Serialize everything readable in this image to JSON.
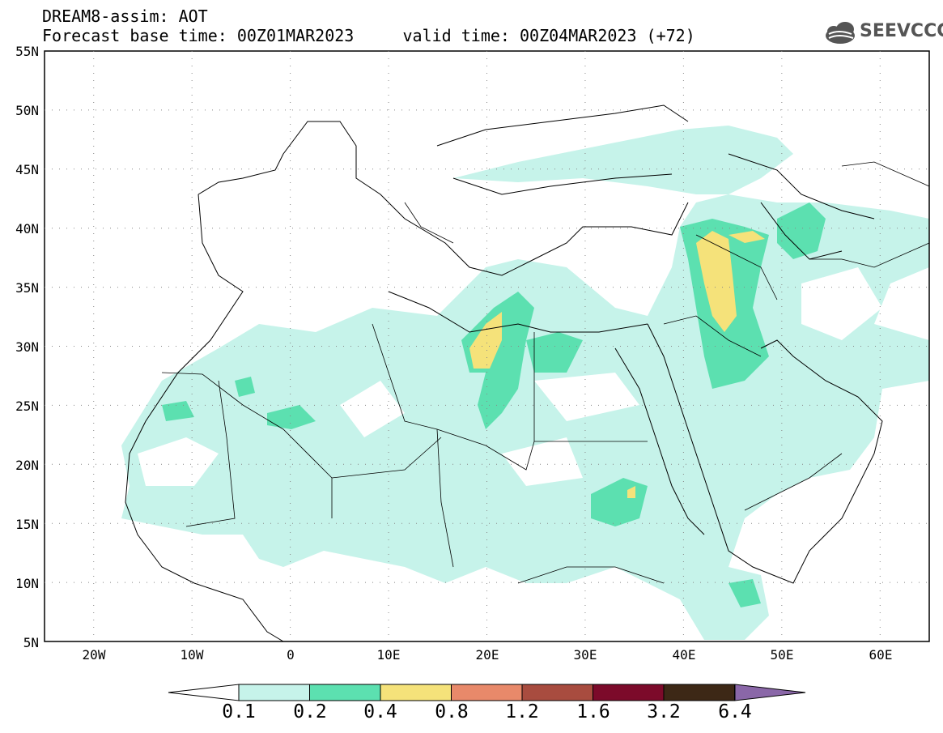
{
  "header": {
    "line1": "DREAM8-assim: AOT",
    "line2": "Forecast base time: 00Z01MAR2023     valid time: 00Z04MAR2023 (+72)"
  },
  "logo": {
    "text": "SEEVCCC",
    "icon": "cloud-icon"
  },
  "map": {
    "lat_labels": [
      "55N",
      "50N",
      "45N",
      "40N",
      "35N",
      "30N",
      "25N",
      "20N",
      "15N",
      "10N",
      "5N"
    ],
    "lon_labels": [
      "20W",
      "10W",
      "0",
      "10E",
      "20E",
      "30E",
      "40E",
      "50E",
      "60E"
    ],
    "lat_range": [
      5,
      55
    ],
    "lon_range": [
      -25,
      65
    ],
    "grid": "dotted"
  },
  "colorbar": {
    "labels": [
      "0.1",
      "0.2",
      "0.4",
      "0.8",
      "1.2",
      "1.6",
      "3.2",
      "6.4"
    ],
    "colors": [
      "#c6f3ea",
      "#5ce0b0",
      "#f5e27a",
      "#e8896a",
      "#a84c3f",
      "#7c0a2a",
      "#3d2816",
      "#8a67a8"
    ],
    "left_arrow_color": "#ffffff",
    "right_arrow_color": "#8a67a8"
  }
}
